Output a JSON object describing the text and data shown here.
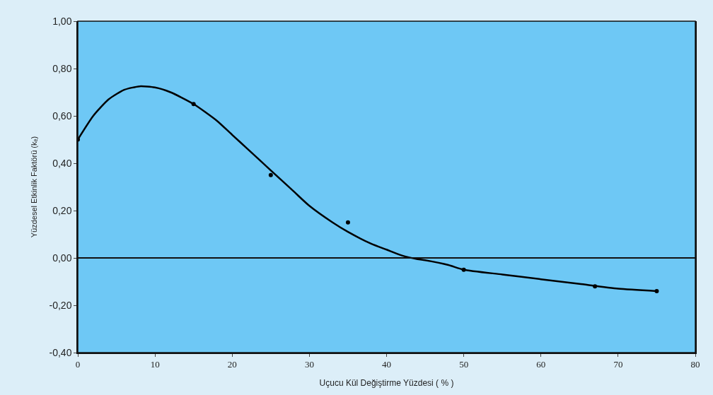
{
  "chart_data": {
    "type": "scatter",
    "xlabel": "Uçucu Kül Değiştirme Yüzdesi ( % )",
    "ylabel": "Yüzdesel Etkinlik Faktörü (kₑ)",
    "series": [
      {
        "color": "#000000",
        "marker": "circle",
        "x": [
          0,
          15,
          25,
          35,
          50,
          67,
          75
        ],
        "values": [
          0.5,
          0.65,
          0.35,
          0.15,
          -0.05,
          -0.12,
          -0.14
        ]
      },
      {
        "type": "line",
        "color": "#000000",
        "marker": "none",
        "line_style": "solid",
        "x": [
          0,
          2,
          4,
          6,
          8,
          10,
          12,
          15,
          18,
          20,
          22,
          25,
          28,
          30,
          33,
          35,
          38,
          40,
          42,
          44,
          45,
          48,
          50,
          55,
          60,
          65,
          70,
          75
        ],
        "values": [
          0.5,
          0.6,
          0.67,
          0.71,
          0.725,
          0.72,
          0.7,
          0.65,
          0.58,
          0.52,
          0.46,
          0.37,
          0.28,
          0.22,
          0.15,
          0.11,
          0.06,
          0.035,
          0.01,
          -0.005,
          -0.01,
          -0.03,
          -0.05,
          -0.07,
          -0.09,
          -0.11,
          -0.13,
          -0.14
        ]
      }
    ],
    "xlim": [
      0,
      80
    ],
    "xticks": [
      0,
      10,
      20,
      30,
      40,
      50,
      60,
      70,
      80
    ],
    "ylim": [
      -0.4,
      1.0
    ],
    "yticks": [
      {
        "value": -0.4,
        "label": "-0,40"
      },
      {
        "value": -0.2,
        "label": "-0,20"
      },
      {
        "value": 0,
        "label": "0,00"
      },
      {
        "value": 0.2,
        "label": "0,20"
      },
      {
        "value": 0.4,
        "label": "0,40"
      },
      {
        "value": 0.6,
        "label": "0,60"
      },
      {
        "value": 0.8,
        "label": "0,80"
      },
      {
        "value": 1.0,
        "label": "1,00"
      }
    ],
    "ref_lines": [
      {
        "axis": "y",
        "value": 0,
        "color": "#111111",
        "line_style": "solid"
      }
    ],
    "grid": false
  }
}
